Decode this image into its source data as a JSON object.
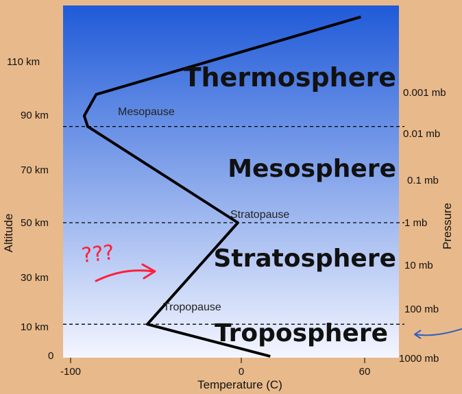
{
  "colors": {
    "background": "#e8b98a",
    "sky_top": "#1f5ad8",
    "sky_bottom": "#f4f6ff",
    "profile": "#000000",
    "annotation": "#ff1f3a",
    "arrow_blue": "#2f5fc0"
  },
  "diagram": {
    "layers": [
      "Thermosphere",
      "Mesosphere",
      "Stratosphere",
      "Troposphere"
    ],
    "pauses": [
      "Mesopause",
      "Stratopause",
      "Tropopause"
    ],
    "altitude_ticks": [
      "110 km",
      "90 km",
      "70 km",
      "50 km",
      "30 km",
      "10 km",
      "0"
    ],
    "pressure_ticks": [
      "0.001 mb",
      "0.01 mb",
      "0.1 mb",
      "1 mb",
      "10 mb",
      "100 mb",
      "1000 mb"
    ],
    "temperature_ticks": [
      "-100",
      "0",
      "60"
    ],
    "x_axis_title": "Temperature (C)",
    "left_axis_title": "Altitude",
    "right_axis_title": "Pressure",
    "handwritten_note": "???",
    "temperature_profile": [
      {
        "t": 17,
        "alt": 0
      },
      {
        "t": -55,
        "alt": 12
      },
      {
        "t": -2,
        "alt": 50
      },
      {
        "t": -90,
        "alt": 86
      },
      {
        "t": -92,
        "alt": 90
      },
      {
        "t": -85,
        "alt": 98
      },
      {
        "t": 70,
        "alt": 127
      }
    ],
    "boundary_altitudes_km": [
      86,
      50,
      12
    ]
  }
}
